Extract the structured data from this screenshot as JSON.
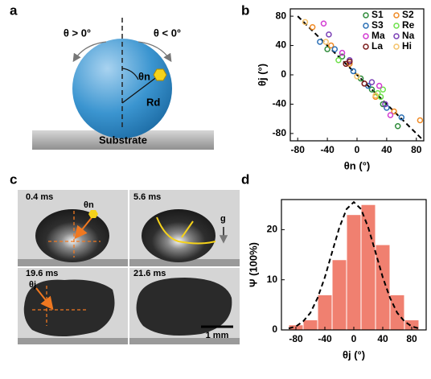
{
  "figure": {
    "panel_labels": [
      "a",
      "b",
      "c",
      "d"
    ],
    "diagram": {
      "left_angle": "θ > 0°",
      "right_angle": "θ < 0°",
      "angle": "θn",
      "radius": "Rd",
      "substrate": "Substrate"
    },
    "photos": {
      "times": [
        "0.4 ms",
        "5.6 ms",
        "19.6 ms",
        "21.6 ms"
      ],
      "angle_n": "θn",
      "angle_j": "θj",
      "gravity": "g",
      "scale_bar": "1 mm"
    }
  },
  "chart_data": [
    {
      "type": "scatter",
      "x_label": "θn (°)",
      "y_label": "θj (°)",
      "xlim": [
        -90,
        90
      ],
      "ylim": [
        -90,
        90
      ],
      "xticks": [
        -80,
        -40,
        0,
        40,
        80
      ],
      "yticks": [
        -80,
        -40,
        0,
        40,
        80
      ],
      "legend": "top-right",
      "series": [
        {
          "name": "S1",
          "color": "#2e8b3a",
          "x": [
            -40,
            -20,
            5,
            20,
            35,
            55
          ],
          "values": [
            35,
            25,
            -5,
            -20,
            -40,
            -70
          ]
        },
        {
          "name": "S2",
          "color": "#f08a24",
          "x": [
            -60,
            -35,
            -10,
            25,
            50,
            85
          ],
          "values": [
            65,
            40,
            15,
            -30,
            -50,
            -62
          ]
        },
        {
          "name": "S3",
          "color": "#2a6fb5",
          "x": [
            -50,
            -30,
            -5,
            15,
            40,
            60
          ],
          "values": [
            45,
            35,
            5,
            -15,
            -45,
            -58
          ]
        },
        {
          "name": "Re",
          "color": "#6de04a",
          "x": [
            -25,
            28,
            32,
            35
          ],
          "values": [
            20,
            -25,
            -30,
            -20
          ]
        },
        {
          "name": "Ma",
          "color": "#d23bd2",
          "x": [
            -45,
            -20,
            30,
            45
          ],
          "values": [
            70,
            30,
            -15,
            -55
          ]
        },
        {
          "name": "Na",
          "color": "#7a3fb5",
          "x": [
            -38,
            -10,
            20,
            38
          ],
          "values": [
            55,
            20,
            -10,
            -40
          ]
        },
        {
          "name": "La",
          "color": "#7a1a1a",
          "x": [
            -15,
            -10,
            10
          ],
          "values": [
            15,
            18,
            -12
          ]
        },
        {
          "name": "Hi",
          "color": "#f5c36b",
          "x": [
            -70,
            -42,
            0,
            25
          ],
          "values": [
            72,
            45,
            -2,
            -28
          ]
        }
      ],
      "fit": {
        "x": [
          -80,
          90
        ],
        "values": [
          80,
          -90
        ]
      }
    },
    {
      "type": "histogram",
      "x_label": "θj (°)",
      "y_label": "Ψ (100%)",
      "xlim": [
        -100,
        100
      ],
      "ylim": [
        0,
        26
      ],
      "xticks": [
        -80,
        -40,
        0,
        40,
        80
      ],
      "yticks": [
        0,
        10,
        20
      ],
      "color": "#f08070",
      "bins": [
        -90,
        -70,
        -50,
        -30,
        -10,
        10,
        30,
        50,
        70,
        90
      ],
      "values": [
        1,
        2,
        7,
        14,
        23,
        25,
        17,
        7,
        2
      ],
      "fit": {
        "x": [
          -90,
          -80,
          -70,
          -60,
          -50,
          -40,
          -30,
          -20,
          -10,
          0,
          10,
          20,
          30,
          40,
          50,
          60,
          70,
          80,
          90
        ],
        "values": [
          0.3,
          0.7,
          1.7,
          3.4,
          6.4,
          10.5,
          15.5,
          20.4,
          24.1,
          25.5,
          24.1,
          20.4,
          15.5,
          10.5,
          6.4,
          3.4,
          1.7,
          0.7,
          0.3
        ]
      }
    }
  ]
}
